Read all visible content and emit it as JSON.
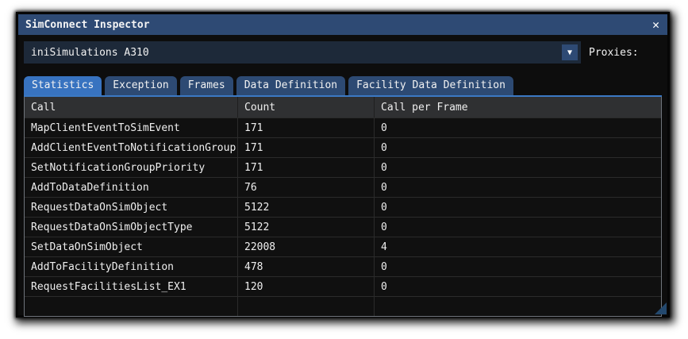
{
  "window": {
    "title": "SimConnect Inspector",
    "close_icon": "✕"
  },
  "toolbar": {
    "connection_value": "iniSimulations A310",
    "dropdown_icon": "▼",
    "proxies_label": "Proxies:"
  },
  "tabs": [
    {
      "label": "Statistics",
      "selected": true
    },
    {
      "label": "Exception",
      "selected": false
    },
    {
      "label": "Frames",
      "selected": false
    },
    {
      "label": "Data Definition",
      "selected": false
    },
    {
      "label": "Facility Data Definition",
      "selected": false
    }
  ],
  "table": {
    "columns": [
      "Call",
      "Count",
      "Call per Frame"
    ],
    "rows": [
      [
        "MapClientEventToSimEvent",
        "171",
        "0"
      ],
      [
        "AddClientEventToNotificationGroup",
        "171",
        "0"
      ],
      [
        "SetNotificationGroupPriority",
        "171",
        "0"
      ],
      [
        "AddToDataDefinition",
        "76",
        "0"
      ],
      [
        "RequestDataOnSimObject",
        "5122",
        "0"
      ],
      [
        "RequestDataOnSimObjectType",
        "5122",
        "0"
      ],
      [
        "SetDataOnSimObject",
        "22008",
        "4"
      ],
      [
        "AddToFacilityDefinition",
        "478",
        "0"
      ],
      [
        "RequestFacilitiesList_EX1",
        "120",
        "0"
      ]
    ]
  },
  "colors": {
    "titlebar": "#2e4a74",
    "tab_selected": "#3873c0",
    "tab_unselected": "#2d4a73",
    "tab_underline": "#3b79c4",
    "window_bg": "#0d0d0d",
    "dropdown_bg": "#1d2939",
    "dropdown_button": "#2e4a74",
    "table_header_bg": "#2f3032",
    "table_border": "#70757c",
    "row_separator": "#2b2b2b",
    "text": "#efefef",
    "resize_grip": "#24496e"
  }
}
